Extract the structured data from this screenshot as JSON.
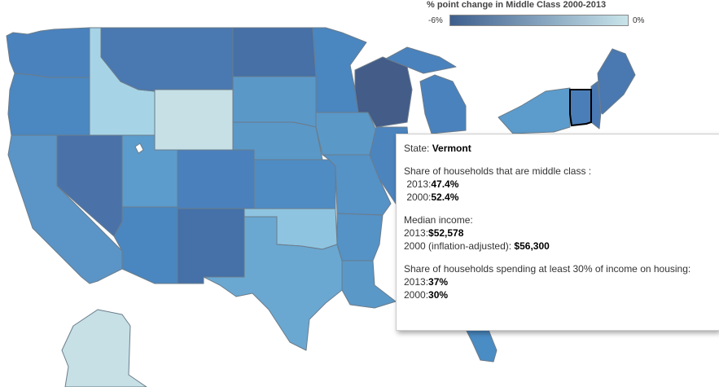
{
  "legend": {
    "title": "% point change in Middle Class 2000-2013",
    "min_label": "-6%",
    "max_label": "0%",
    "color_min": "#3e5f8e",
    "color_max": "#c9e4ea"
  },
  "hovered_state": "Vermont",
  "tooltip": {
    "state_label": "State: ",
    "state_name": "Vermont",
    "share_heading": "Share of households that are middle class :",
    "share_2013_label": " 2013:",
    "share_2013_value": "47.4%",
    "share_2000_label": " 2000:",
    "share_2000_value": "52.4%",
    "income_heading": "Median income:",
    "income_2013_label": "2013:",
    "income_2013_value": "$52,578",
    "income_2000_label": "2000 (inflation-adjusted): ",
    "income_2000_value": "$56,300",
    "housing_heading": "Share of households spending at least 30% of income on housing:",
    "housing_2013_label": "2013:",
    "housing_2013_value": "37%",
    "housing_2000_label": "2000:",
    "housing_2000_value": "30%"
  },
  "state_colors": {
    "Washington": "#4a82be",
    "Oregon": "#4b87c0",
    "California": "#5b95c7",
    "Nevada": "#4a72a8",
    "Idaho": "#a6d4e6",
    "Montana": "#4a78b0",
    "Wyoming": "#c6e0e6",
    "Utah": "#5c9ccc",
    "Arizona": "#4a87c0",
    "New Mexico": "#4570a8",
    "Colorado": "#4a80bc",
    "North Dakota": "#4670a6",
    "South Dakota": "#5a98c8",
    "Nebraska": "#5a98c8",
    "Kansas": "#4f8cc4",
    "Oklahoma": "#8ec4e0",
    "Texas": "#6aa8d2",
    "Minnesota": "#4a86c0",
    "Iowa": "#5a98c8",
    "Missouri": "#5592c6",
    "Arkansas": "#5592c6",
    "Louisiana": "#5a98c8",
    "Wisconsin": "#435c88",
    "Michigan": "#4a82be",
    "Illinois": "#4c84be",
    "Florida": "#4a8cc4",
    "New York": "#5c9ccc",
    "Vermont": "#4a7eb8",
    "New Hampshire": "#4a78b2",
    "Maine": "#4a78b0",
    "Alaska": "#c6e0e6"
  }
}
